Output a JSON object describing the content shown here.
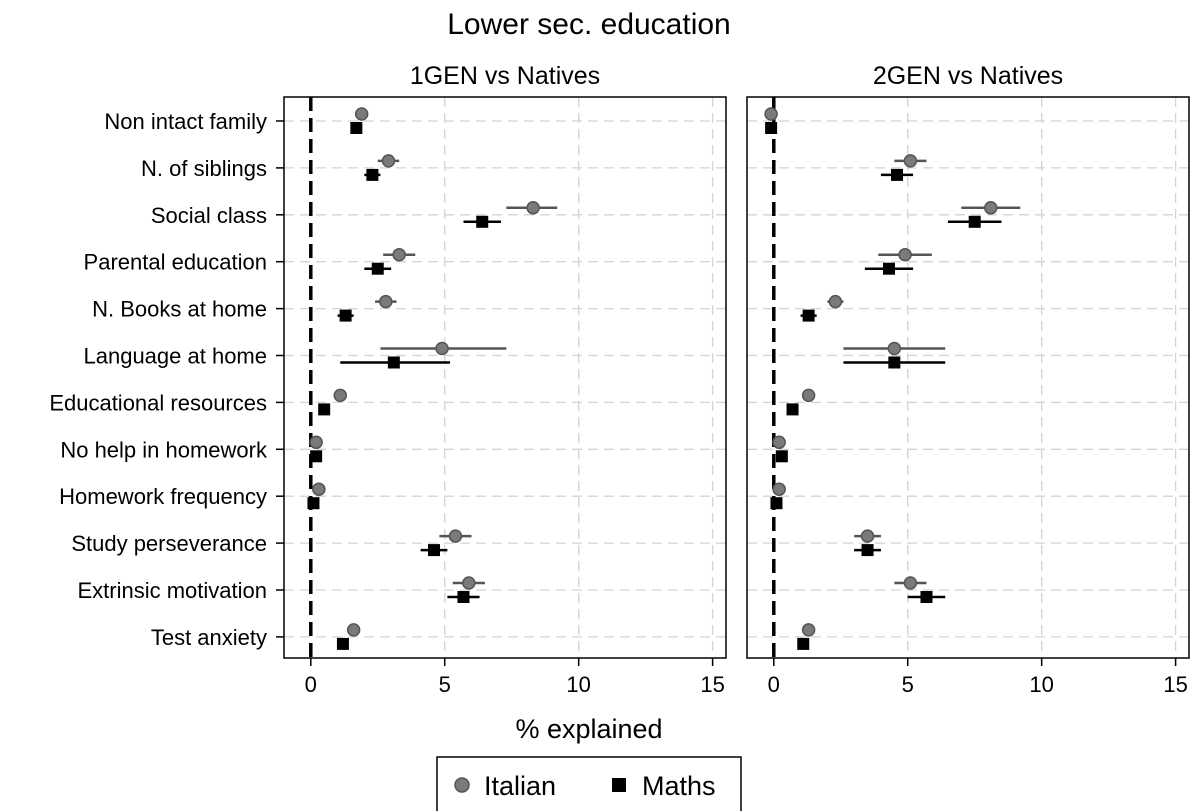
{
  "chart_data": {
    "type": "scatter",
    "title": "Lower sec. education",
    "xlabel": "% explained",
    "xlim": [
      -1,
      15.5
    ],
    "xticks": [
      0,
      5,
      10,
      15
    ],
    "grid": true,
    "legend_position": "bottom-center",
    "reference_line": 0,
    "categories": [
      "Non intact family",
      "N. of siblings",
      "Social class",
      "Parental education",
      "N. Books at home",
      "Language at home",
      "Educational resources",
      "No help in homework",
      "Homework frequency",
      "Study perseverance",
      "Extrinsic motivation",
      "Test anxiety"
    ],
    "legend": [
      {
        "name": "Italian",
        "marker": "circle",
        "color": "#7a7a7a"
      },
      {
        "name": "Maths",
        "marker": "square",
        "color": "#000000"
      }
    ],
    "panels": [
      {
        "title": "1GEN vs Natives",
        "series": [
          {
            "name": "Italian",
            "values": [
              1.9,
              2.9,
              8.3,
              3.3,
              2.8,
              4.9,
              1.1,
              0.2,
              0.3,
              5.4,
              5.9,
              1.6
            ],
            "ci_low": [
              1.7,
              2.5,
              7.3,
              2.7,
              2.4,
              2.6,
              1.0,
              0.1,
              0.2,
              4.8,
              5.3,
              1.5
            ],
            "ci_high": [
              2.1,
              3.3,
              9.2,
              3.9,
              3.2,
              7.3,
              1.2,
              0.3,
              0.4,
              6.0,
              6.5,
              1.7
            ]
          },
          {
            "name": "Maths",
            "values": [
              1.7,
              2.3,
              6.4,
              2.5,
              1.3,
              3.1,
              0.5,
              0.2,
              0.1,
              4.6,
              5.7,
              1.2
            ],
            "ci_low": [
              1.5,
              2.0,
              5.7,
              2.0,
              1.0,
              1.1,
              0.4,
              0.1,
              0.0,
              4.1,
              5.1,
              1.1
            ],
            "ci_high": [
              1.9,
              2.6,
              7.1,
              3.0,
              1.6,
              5.2,
              0.6,
              0.3,
              0.2,
              5.1,
              6.3,
              1.3
            ]
          }
        ]
      },
      {
        "title": "2GEN vs Natives",
        "series": [
          {
            "name": "Italian",
            "values": [
              -0.1,
              5.1,
              8.1,
              4.9,
              2.3,
              4.5,
              1.3,
              0.2,
              0.2,
              3.5,
              5.1,
              1.3
            ],
            "ci_low": [
              -0.2,
              4.5,
              7.0,
              3.9,
              2.0,
              2.6,
              1.2,
              0.1,
              0.1,
              3.0,
              4.5,
              1.2
            ],
            "ci_high": [
              0.0,
              5.7,
              9.2,
              5.9,
              2.6,
              6.4,
              1.4,
              0.3,
              0.3,
              4.0,
              5.7,
              1.4
            ]
          },
          {
            "name": "Maths",
            "values": [
              -0.1,
              4.6,
              7.5,
              4.3,
              1.3,
              4.5,
              0.7,
              0.3,
              0.1,
              3.5,
              5.7,
              1.1
            ],
            "ci_low": [
              -0.2,
              4.0,
              6.5,
              3.4,
              1.0,
              2.6,
              0.6,
              0.2,
              0.0,
              3.0,
              5.0,
              1.0
            ],
            "ci_high": [
              0.0,
              5.2,
              8.5,
              5.2,
              1.6,
              6.4,
              0.8,
              0.4,
              0.2,
              4.0,
              6.4,
              1.2
            ]
          }
        ]
      }
    ]
  }
}
